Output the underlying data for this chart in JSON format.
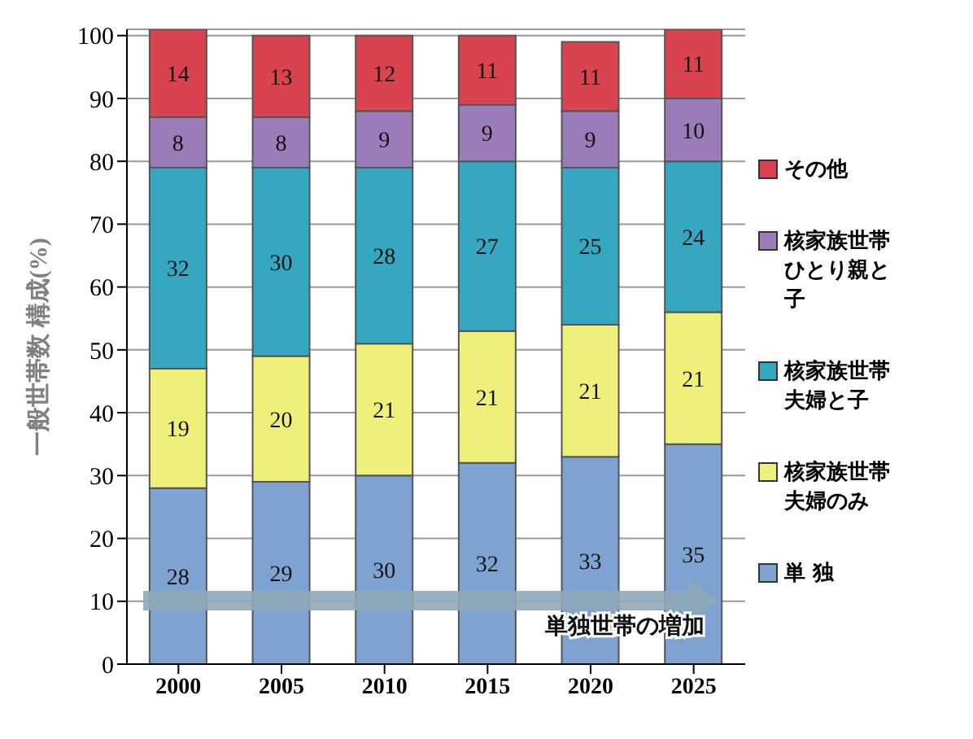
{
  "chart_data": {
    "type": "bar",
    "stacked": true,
    "ylabel": "一般世帯数 構成(%)",
    "categories": [
      "2000",
      "2005",
      "2010",
      "2015",
      "2020",
      "2025"
    ],
    "series": [
      {
        "name": "単 独",
        "color": "#7fa3d0",
        "values": [
          28,
          29,
          30,
          32,
          33,
          35
        ]
      },
      {
        "name": "核家族世帯夫婦のみ",
        "color": "#eef07a",
        "values": [
          19,
          20,
          21,
          21,
          21,
          21
        ]
      },
      {
        "name": "核家族世帯夫婦と子",
        "color": "#35a7c0",
        "values": [
          32,
          30,
          28,
          27,
          25,
          24
        ]
      },
      {
        "name": "核家族世帯ひとり親と子",
        "color": "#9a7cb8",
        "values": [
          8,
          8,
          9,
          9,
          9,
          10
        ]
      },
      {
        "name": "その他",
        "color": "#d8434f",
        "values": [
          14,
          13,
          12,
          11,
          11,
          11
        ]
      }
    ],
    "ylim": [
      0,
      101
    ],
    "yticks": [
      0,
      10,
      20,
      30,
      40,
      50,
      60,
      70,
      80,
      90,
      100
    ],
    "grid": "y",
    "legend": "right",
    "data_labels": true,
    "annotations": [
      "単独世帯の増加"
    ]
  }
}
